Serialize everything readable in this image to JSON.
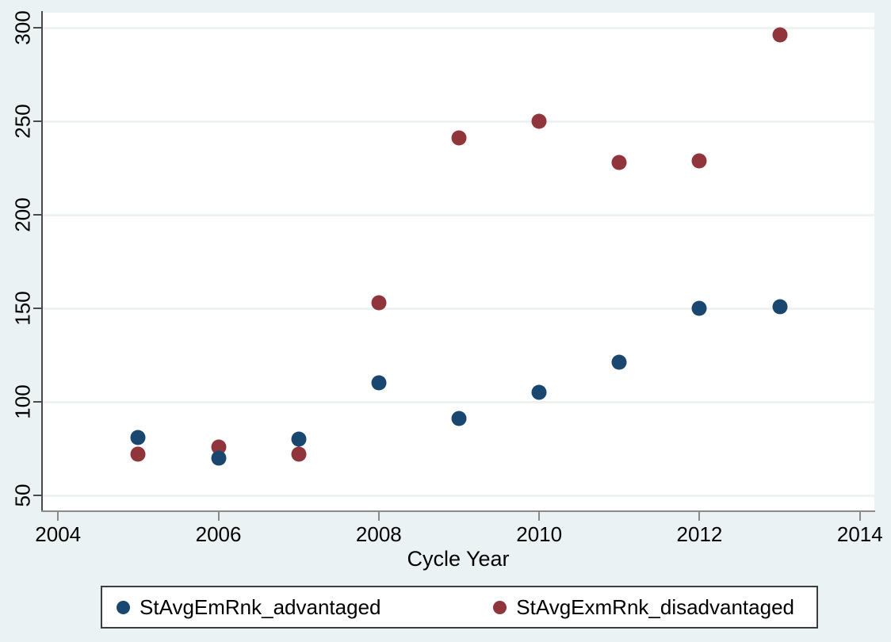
{
  "figure": {
    "background_color": "#eaf2f3",
    "plot_background_color": "#ffffff",
    "grid_color": "#eff2f2",
    "y_axis_color": "#4a4a4a",
    "x_axis_color": "#8a8a8a",
    "text_color": "#000000"
  },
  "chart_data": {
    "type": "scatter",
    "x": [
      2005,
      2006,
      2007,
      2008,
      2009,
      2010,
      2011,
      2012,
      2013
    ],
    "series": [
      {
        "name": "StAvgEmRnk_advantaged",
        "color": "#1a476f",
        "values": [
          81,
          70,
          80,
          110,
          91,
          105,
          121,
          150,
          151
        ]
      },
      {
        "name": "StAvgExmRnk_disadvantaged",
        "color": "#90353b",
        "values": [
          72,
          76,
          72,
          153,
          241,
          250,
          228,
          229,
          296
        ]
      }
    ],
    "title": "",
    "xlabel": "Cycle Year",
    "ylabel": "",
    "x_ticks": [
      2004,
      2006,
      2008,
      2010,
      2012,
      2014
    ],
    "y_ticks": [
      50,
      100,
      150,
      200,
      250,
      300
    ],
    "xlim": [
      2003.8,
      2014.18
    ],
    "ylim": [
      42,
      308
    ],
    "grid": "horizontal",
    "legend_position": "bottom-center"
  },
  "legend": {
    "items": [
      {
        "label": "StAvgEmRnk_advantaged",
        "color": "#1a476f"
      },
      {
        "label": "StAvgExmRnk_disadvantaged",
        "color": "#90353b"
      }
    ]
  }
}
